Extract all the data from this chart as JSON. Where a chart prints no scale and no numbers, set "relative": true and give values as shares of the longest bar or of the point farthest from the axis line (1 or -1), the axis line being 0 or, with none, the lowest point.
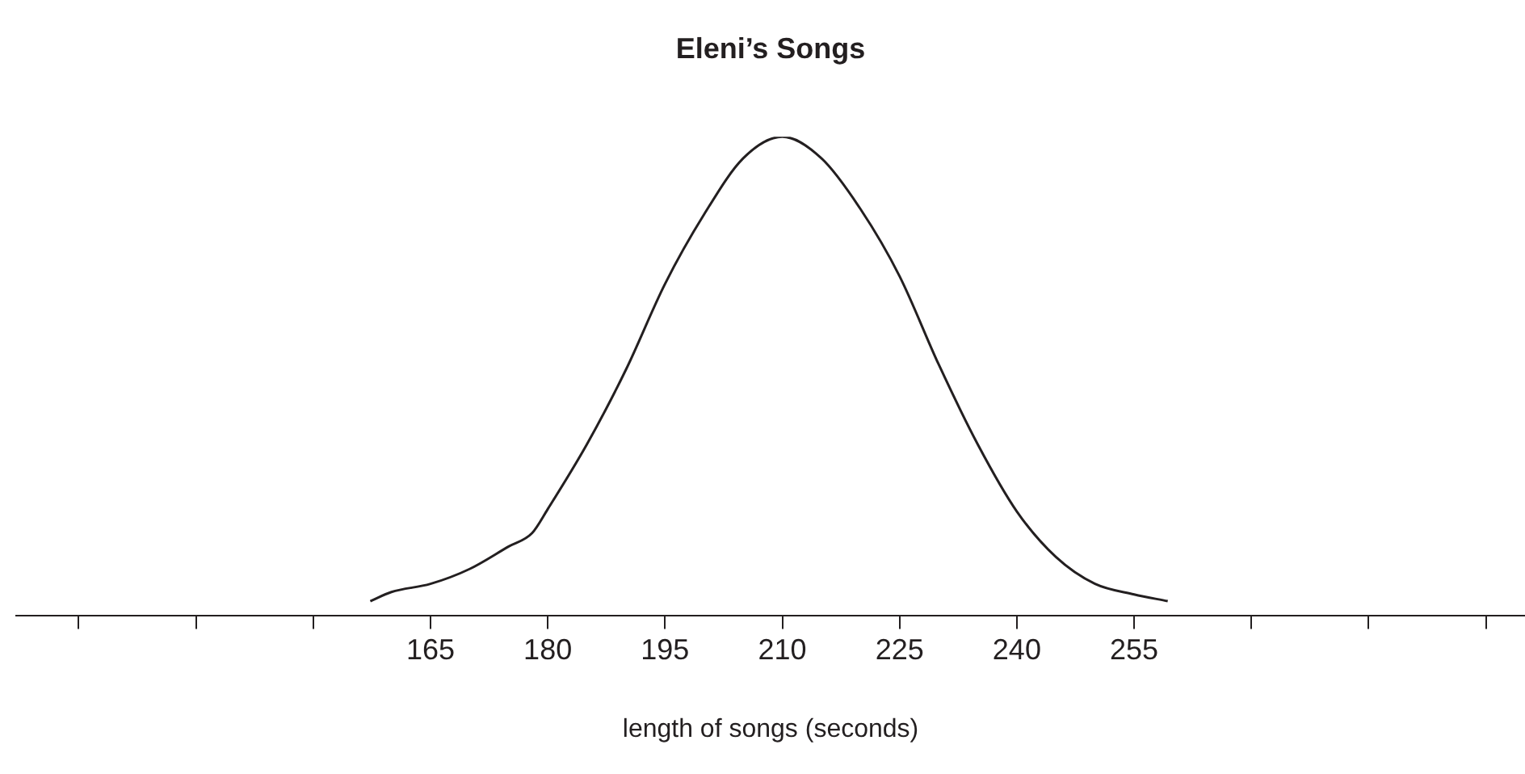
{
  "chart_data": {
    "type": "line",
    "title": "Eleni’s Songs",
    "xlabel": "length of songs (seconds)",
    "relative": true,
    "marker": "none",
    "grid": false,
    "legend": false,
    "x": [
      157.3,
      160,
      165,
      170,
      175,
      178,
      180,
      185,
      190,
      195,
      200,
      205,
      210,
      215,
      220,
      225,
      230,
      235,
      240,
      245,
      250,
      255,
      259.3
    ],
    "series": [
      {
        "color": "#231f20",
        "values": [
          0.031,
          0.05,
          0.067,
          0.098,
          0.145,
          0.173,
          0.223,
          0.358,
          0.514,
          0.693,
          0.838,
          0.955,
          1,
          0.955,
          0.849,
          0.709,
          0.525,
          0.358,
          0.218,
          0.123,
          0.067,
          0.045,
          0.031
        ]
      }
    ],
    "xlim": [
      112,
      305
    ],
    "xticks": [
      {
        "value": 120,
        "label": null
      },
      {
        "value": 135,
        "label": null
      },
      {
        "value": 150,
        "label": null
      },
      165,
      180,
      195,
      210,
      225,
      240,
      255,
      {
        "value": 270,
        "label": null
      },
      {
        "value": 285,
        "label": null
      },
      {
        "value": 300,
        "label": null
      }
    ]
  }
}
